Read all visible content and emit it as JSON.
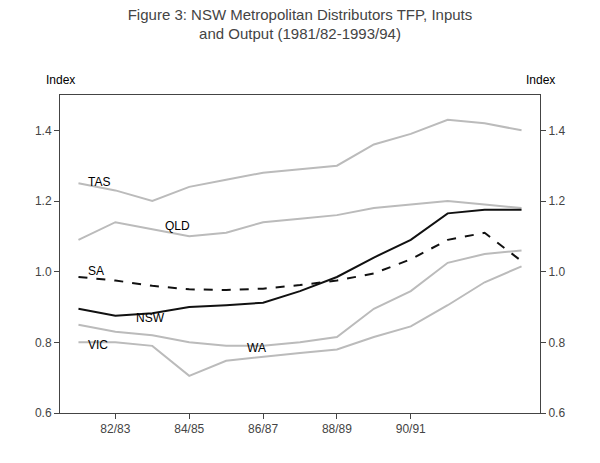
{
  "chart_data": {
    "type": "line",
    "title": "Figure 3: NSW Metropolitan Distributors TFP, Inputs\nand Output (1981/82-1993/94)",
    "ylabel": "Index",
    "y2label": "Index",
    "categories": [
      null,
      "82/83",
      null,
      "84/85",
      null,
      "86/87",
      null,
      "88/89",
      null,
      "90/91",
      null,
      null,
      null
    ],
    "series": [
      {
        "name": "TAS",
        "color": "#bbbbbb",
        "line_style": "solid",
        "values": [
          1.25,
          1.23,
          1.2,
          1.24,
          1.26,
          1.28,
          1.29,
          1.3,
          1.36,
          1.39,
          1.43,
          1.42,
          1.4
        ]
      },
      {
        "name": "QLD",
        "color": "#bbbbbb",
        "line_style": "solid",
        "values": [
          1.09,
          1.14,
          1.12,
          1.1,
          1.11,
          1.14,
          1.15,
          1.16,
          1.18,
          1.19,
          1.2,
          1.19,
          1.18
        ]
      },
      {
        "name": "SA",
        "color": "#111111",
        "line_style": "dash",
        "values": [
          0.985,
          0.975,
          0.96,
          0.95,
          0.948,
          0.952,
          0.962,
          0.975,
          0.995,
          1.035,
          1.09,
          1.11,
          1.03
        ]
      },
      {
        "name": "NSW",
        "color": "#111111",
        "line_style": "solid",
        "values": [
          0.895,
          0.875,
          0.882,
          0.9,
          0.905,
          0.912,
          0.945,
          0.985,
          1.04,
          1.09,
          1.165,
          1.175,
          1.175
        ]
      },
      {
        "name": "WA",
        "color": "#bbbbbb",
        "line_style": "solid",
        "values": [
          0.85,
          0.83,
          0.82,
          0.8,
          0.79,
          0.79,
          0.8,
          0.815,
          0.895,
          0.945,
          1.025,
          1.05,
          1.06
        ]
      },
      {
        "name": "VIC",
        "color": "#bbbbbb",
        "line_style": "solid",
        "values": [
          0.8,
          0.8,
          0.79,
          0.705,
          0.748,
          0.76,
          0.77,
          0.78,
          0.815,
          0.845,
          0.905,
          0.97,
          1.015
        ]
      }
    ],
    "annotations": [
      {
        "text": "TAS",
        "x": 0.2,
        "y": 1.255
      },
      {
        "text": "QLD",
        "x": 2.3,
        "y": 1.128
      },
      {
        "text": "SA",
        "x": 0.2,
        "y": 1.003
      },
      {
        "text": "NSW",
        "x": 1.5,
        "y": 0.868
      },
      {
        "text": "WA",
        "x": 4.5,
        "y": 0.784
      },
      {
        "text": "VIC",
        "x": 0.2,
        "y": 0.793
      }
    ],
    "ylim": [
      0.6,
      1.5
    ],
    "yticks": [
      0.6,
      0.8,
      {
        "value": 1.0,
        "label": "1.0"
      },
      1.2,
      1.4
    ],
    "y2lim": [
      0.6,
      1.5
    ],
    "y2ticks": [
      0.6,
      0.8,
      {
        "value": 1.0,
        "label": "1.0"
      },
      1.2,
      1.4
    ],
    "grid": false,
    "legend": false
  }
}
